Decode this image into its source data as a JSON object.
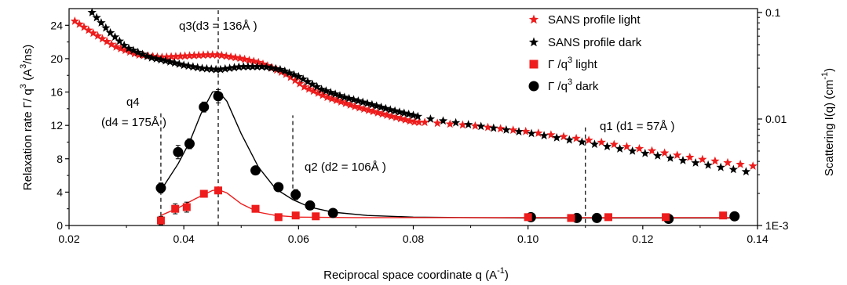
{
  "chart_data": {
    "type": "scatter",
    "x_axis": {
      "label": "Reciprocal space coordinate q  (A",
      "label_sup": "-1",
      "label_tail": ")",
      "range": [
        0.02,
        0.14
      ],
      "ticks": [
        "0.02",
        "0.04",
        "0.06",
        "0.08",
        "0.10",
        "0.12",
        "0.14"
      ],
      "tick_values": [
        0.02,
        0.04,
        0.06,
        0.08,
        0.1,
        0.12,
        0.14
      ]
    },
    "y_left": {
      "label_main": "Relaxation rate  Γ/ q",
      "label_sup1": "3",
      "label_mid": "  (A",
      "label_sup2": "3",
      "label_tail": "/ns)",
      "range": [
        0,
        26
      ],
      "ticks": [
        "0",
        "4",
        "8",
        "12",
        "16",
        "20",
        "24"
      ],
      "tick_values": [
        0,
        4,
        8,
        12,
        16,
        20,
        24
      ]
    },
    "y_right": {
      "label_main": "Scattering  I(q)  (cm",
      "label_sup": "-1",
      "label_tail": ")",
      "scale": "log",
      "range": [
        0.001,
        0.1
      ],
      "ticks": [
        "1E-3",
        "0.01",
        "0.1"
      ],
      "tick_values": [
        0.001,
        0.01,
        0.1
      ]
    },
    "legend": {
      "position": "top-right",
      "items": [
        {
          "text": "SANS profile  light",
          "marker": "star",
          "color": "#ee1c1c"
        },
        {
          "text": "SANS profile  dark",
          "marker": "star",
          "color": "#000000"
        },
        {
          "text": "Γ /q",
          "sup": "3",
          "tail": " light",
          "marker": "square",
          "color": "#ee1c1c"
        },
        {
          "text": "Γ /q",
          "sup": "3",
          "tail": " dark",
          "marker": "circle",
          "color": "#000000"
        }
      ]
    },
    "annotations": [
      {
        "id": "q3",
        "text": "q3(d3 = 136Å )",
        "x": 0.046
      },
      {
        "id": "q4a",
        "text": "q4",
        "x": 0.036
      },
      {
        "id": "q4b",
        "text": "(d4 = 175Å )",
        "x": 0.036
      },
      {
        "id": "q2",
        "text": "q2 (d2 = 106Å )",
        "x": 0.059
      },
      {
        "id": "q1",
        "text": "q1 (d1 = 57Å )",
        "x": 0.11
      }
    ],
    "vlines": [
      {
        "x": 0.036,
        "y_from": 0.3,
        "y_to": 13.8
      },
      {
        "x": 0.046,
        "y_from": 0,
        "y_to": 25.8
      },
      {
        "x": 0.059,
        "y_from": 3.6,
        "y_to": 13.2
      },
      {
        "x": 0.11,
        "y_from": 0.3,
        "y_to": 12.0
      }
    ],
    "series": [
      {
        "name": "Γ /q³ dark",
        "marker": "circle",
        "color": "#000000",
        "axis": "left",
        "points": [
          {
            "x": 0.036,
            "y": 4.5,
            "err": 0.6
          },
          {
            "x": 0.039,
            "y": 8.8,
            "err": 0.8
          },
          {
            "x": 0.041,
            "y": 9.8,
            "err": 0.6
          },
          {
            "x": 0.0435,
            "y": 14.2,
            "err": 0.6
          },
          {
            "x": 0.046,
            "y": 15.5,
            "err": 0.8
          },
          {
            "x": 0.0525,
            "y": 6.6,
            "err": 0.5
          },
          {
            "x": 0.0565,
            "y": 4.6,
            "err": 0.3
          },
          {
            "x": 0.0595,
            "y": 3.7,
            "err": 0.6
          },
          {
            "x": 0.062,
            "y": 2.4,
            "err": 0.3
          },
          {
            "x": 0.066,
            "y": 1.5,
            "err": 0.2
          },
          {
            "x": 0.1005,
            "y": 1.0,
            "err": 0.2
          },
          {
            "x": 0.1085,
            "y": 0.9,
            "err": 0.2
          },
          {
            "x": 0.112,
            "y": 0.9,
            "err": 0.2
          },
          {
            "x": 0.1245,
            "y": 0.8,
            "err": 0.2
          },
          {
            "x": 0.136,
            "y": 1.1,
            "err": 0.2
          }
        ],
        "fit": [
          [
            0.036,
            4.2
          ],
          [
            0.039,
            7.4
          ],
          [
            0.041,
            10.0
          ],
          [
            0.043,
            13.4
          ],
          [
            0.045,
            16.0
          ],
          [
            0.046,
            16.1
          ],
          [
            0.0475,
            14.9
          ],
          [
            0.05,
            11.0
          ],
          [
            0.053,
            7.0
          ],
          [
            0.056,
            4.4
          ],
          [
            0.059,
            3.1
          ],
          [
            0.062,
            2.2
          ],
          [
            0.066,
            1.6
          ],
          [
            0.072,
            1.2
          ],
          [
            0.08,
            1.0
          ],
          [
            0.09,
            0.95
          ],
          [
            0.1,
            0.9
          ],
          [
            0.12,
            0.9
          ],
          [
            0.136,
            0.9
          ]
        ]
      },
      {
        "name": "Γ /q³ light",
        "marker": "square",
        "color": "#ee1c1c",
        "axis": "left",
        "points": [
          {
            "x": 0.036,
            "y": 0.6,
            "err": 0.5
          },
          {
            "x": 0.0385,
            "y": 2.0,
            "err": 0.6
          },
          {
            "x": 0.0405,
            "y": 2.2,
            "err": 0.6
          },
          {
            "x": 0.0435,
            "y": 3.8,
            "err": 0.4
          },
          {
            "x": 0.046,
            "y": 4.2,
            "err": 0.4
          },
          {
            "x": 0.0525,
            "y": 2.0,
            "err": 0.2
          },
          {
            "x": 0.0565,
            "y": 1.0,
            "err": 0.2
          },
          {
            "x": 0.0595,
            "y": 1.2,
            "err": 0.2
          },
          {
            "x": 0.063,
            "y": 1.1,
            "err": 0.2
          },
          {
            "x": 0.1,
            "y": 1.0,
            "err": 0.2
          },
          {
            "x": 0.1075,
            "y": 0.9,
            "err": 0.2
          },
          {
            "x": 0.114,
            "y": 1.0,
            "err": 0.2
          },
          {
            "x": 0.124,
            "y": 1.0,
            "err": 0.2
          },
          {
            "x": 0.134,
            "y": 1.2,
            "err": 0.2
          }
        ],
        "fit": [
          [
            0.036,
            1.2
          ],
          [
            0.039,
            2.1
          ],
          [
            0.042,
            3.2
          ],
          [
            0.045,
            4.2
          ],
          [
            0.046,
            4.3
          ],
          [
            0.0475,
            3.9
          ],
          [
            0.05,
            2.6
          ],
          [
            0.053,
            1.6
          ],
          [
            0.056,
            1.2
          ],
          [
            0.06,
            1.0
          ],
          [
            0.07,
            0.95
          ],
          [
            0.09,
            0.95
          ],
          [
            0.11,
            0.95
          ],
          [
            0.136,
            0.95
          ]
        ]
      },
      {
        "name": "SANS profile light",
        "marker": "star",
        "color": "#ee1c1c",
        "axis": "right",
        "step": 0.0008,
        "x_range": [
          0.021,
          0.081
        ],
        "curve": [
          [
            0.02,
            0.09
          ],
          [
            0.024,
            0.065
          ],
          [
            0.028,
            0.048
          ],
          [
            0.032,
            0.04
          ],
          [
            0.036,
            0.038
          ],
          [
            0.04,
            0.039
          ],
          [
            0.044,
            0.04
          ],
          [
            0.046,
            0.04
          ],
          [
            0.05,
            0.037
          ],
          [
            0.053,
            0.034
          ],
          [
            0.055,
            0.031
          ],
          [
            0.058,
            0.026
          ],
          [
            0.061,
            0.02
          ],
          [
            0.065,
            0.016
          ],
          [
            0.07,
            0.013
          ],
          [
            0.075,
            0.011
          ],
          [
            0.08,
            0.0094
          ],
          [
            0.081,
            0.0093
          ]
        ]
      },
      {
        "name": "SANS profile dark",
        "marker": "star",
        "color": "#000000",
        "axis": "right",
        "step": 0.0008,
        "x_range": [
          0.024,
          0.081
        ],
        "curve": [
          [
            0.024,
            0.1
          ],
          [
            0.027,
            0.066
          ],
          [
            0.03,
            0.047
          ],
          [
            0.034,
            0.038
          ],
          [
            0.037,
            0.035
          ],
          [
            0.04,
            0.032
          ],
          [
            0.043,
            0.03
          ],
          [
            0.046,
            0.029
          ],
          [
            0.048,
            0.03
          ],
          [
            0.05,
            0.031
          ],
          [
            0.054,
            0.031
          ],
          [
            0.057,
            0.029
          ],
          [
            0.06,
            0.025
          ],
          [
            0.064,
            0.019
          ],
          [
            0.068,
            0.016
          ],
          [
            0.072,
            0.014
          ],
          [
            0.076,
            0.0122
          ],
          [
            0.081,
            0.0105
          ]
        ]
      },
      {
        "name": "SANS profile tail light",
        "marker": "star",
        "color": "#ee1c1c",
        "axis": "right",
        "step": 0.0022,
        "x_range": [
          0.082,
          0.1395
        ],
        "curve": [
          [
            0.082,
            0.0093
          ],
          [
            0.09,
            0.0087
          ],
          [
            0.1,
            0.0076
          ],
          [
            0.11,
            0.0064
          ],
          [
            0.12,
            0.0052
          ],
          [
            0.13,
            0.0042
          ],
          [
            0.1395,
            0.0036
          ]
        ]
      },
      {
        "name": "SANS profile tail dark",
        "marker": "star",
        "color": "#000000",
        "axis": "right",
        "step": 0.0022,
        "x_range": [
          0.083,
          0.1395
        ],
        "curve": [
          [
            0.083,
            0.01
          ],
          [
            0.09,
            0.0088
          ],
          [
            0.1,
            0.0074
          ],
          [
            0.11,
            0.006
          ],
          [
            0.12,
            0.0048
          ],
          [
            0.13,
            0.0038
          ],
          [
            0.1395,
            0.0031
          ]
        ]
      }
    ]
  }
}
